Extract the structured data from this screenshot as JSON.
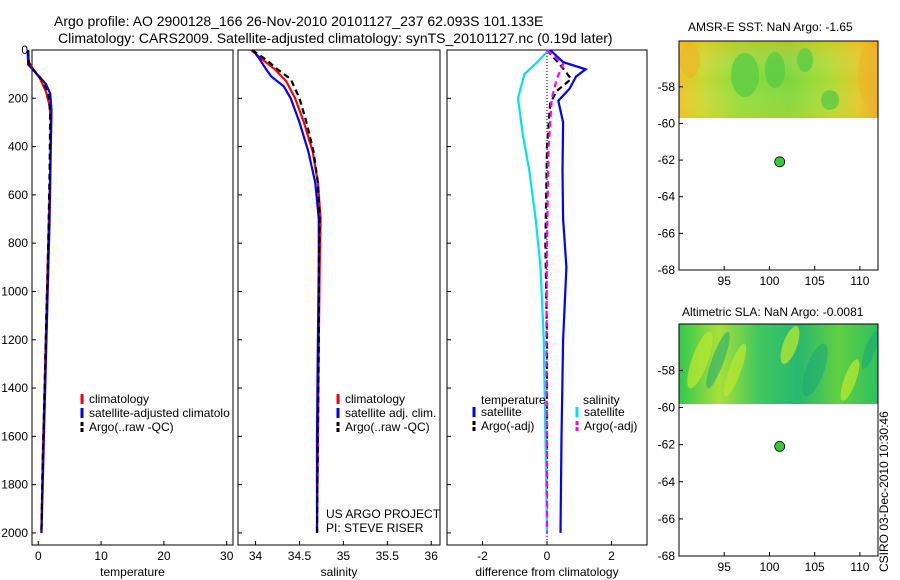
{
  "title_line1": "Argo profile: AO 2900128_166 26-Nov-2010 20101127_237 62.093S 101.133E",
  "title_line2": "Climatology: CARS2009. Satellite-adjusted climatology: synTS_20101127.nc (0.19d later)",
  "credit": "US ARGO PROJECT",
  "pi": "PI: STEVE RISER",
  "timestamp": "CSIRO 03-Dec-2010 10:30:46",
  "colors": {
    "climatology": "#ff0000",
    "satellite": "#0000ff",
    "argo": "#000000",
    "sal_sat": "#00e5e5",
    "sal_argo": "#ff00ff"
  },
  "chart_data": [
    {
      "type": "line",
      "xlabel": "temperature",
      "xlim": [
        -1,
        31
      ],
      "ylim": [
        2050,
        0
      ],
      "xticks": [
        0,
        10,
        20,
        30
      ],
      "yticks": [
        0,
        200,
        400,
        600,
        800,
        1000,
        1200,
        1400,
        1600,
        1800,
        2000
      ],
      "legend": [
        "climatology",
        "satellite-adjusted climatolo",
        "Argo(..raw -QC)"
      ],
      "series": [
        {
          "name": "climatology",
          "color": "red",
          "dash": "",
          "points": [
            [
              -1.6,
              0
            ],
            [
              -1.5,
              50
            ],
            [
              -0.8,
              80
            ],
            [
              0.3,
              120
            ],
            [
              1.2,
              170
            ],
            [
              1.8,
              230
            ],
            [
              2.0,
              300
            ],
            [
              1.9,
              500
            ],
            [
              1.6,
              800
            ],
            [
              1.3,
              1100
            ],
            [
              1.0,
              1400
            ],
            [
              0.7,
              1700
            ],
            [
              0.5,
              2000
            ]
          ]
        },
        {
          "name": "satellite-adjusted climatology",
          "color": "blue",
          "dash": "",
          "points": [
            [
              -1.7,
              0
            ],
            [
              -1.6,
              60
            ],
            [
              -0.2,
              100
            ],
            [
              1.2,
              140
            ],
            [
              1.9,
              180
            ],
            [
              2.1,
              250
            ],
            [
              2.0,
              400
            ],
            [
              1.8,
              700
            ],
            [
              1.5,
              1000
            ],
            [
              1.2,
              1300
            ],
            [
              0.9,
              1600
            ],
            [
              0.7,
              1800
            ],
            [
              0.5,
              2000
            ]
          ]
        },
        {
          "name": "Argo(..raw -QC)",
          "color": "black",
          "dash": "6,4",
          "points": [
            [
              -1.6,
              0
            ],
            [
              -1.5,
              60
            ],
            [
              0.5,
              120
            ],
            [
              1.6,
              180
            ],
            [
              1.9,
              260
            ],
            [
              1.8,
              500
            ],
            [
              1.6,
              800
            ],
            [
              1.3,
              1100
            ],
            [
              1.0,
              1400
            ],
            [
              0.7,
              1700
            ],
            [
              0.5,
              2000
            ]
          ]
        }
      ]
    },
    {
      "type": "line",
      "xlabel": "salinity",
      "xlim": [
        33.8,
        36.1
      ],
      "ylim": [
        2050,
        0
      ],
      "xticks": [
        34,
        34.5,
        35,
        35.5,
        36
      ],
      "yticks": [
        0,
        200,
        400,
        600,
        800,
        1000,
        1200,
        1400,
        1600,
        1800,
        2000
      ],
      "legend": [
        "climatology",
        "satellite adj. clim.",
        "Argo(..raw -QC)"
      ],
      "series": [
        {
          "name": "climatology",
          "color": "red",
          "dash": "",
          "points": [
            [
              33.95,
              0
            ],
            [
              34.08,
              40
            ],
            [
              34.22,
              80
            ],
            [
              34.35,
              130
            ],
            [
              34.45,
              200
            ],
            [
              34.55,
              300
            ],
            [
              34.65,
              420
            ],
            [
              34.71,
              550
            ],
            [
              34.74,
              700
            ],
            [
              34.73,
              900
            ],
            [
              34.72,
              1200
            ],
            [
              34.71,
              1600
            ],
            [
              34.7,
              2000
            ]
          ]
        },
        {
          "name": "satellite adj. clim.",
          "color": "blue",
          "dash": "",
          "points": [
            [
              33.97,
              0
            ],
            [
              34.05,
              40
            ],
            [
              34.12,
              80
            ],
            [
              34.18,
              110
            ],
            [
              34.32,
              150
            ],
            [
              34.4,
              200
            ],
            [
              34.5,
              300
            ],
            [
              34.6,
              420
            ],
            [
              34.68,
              550
            ],
            [
              34.72,
              700
            ],
            [
              34.72,
              900
            ],
            [
              34.71,
              1200
            ],
            [
              34.7,
              1600
            ],
            [
              34.7,
              2000
            ]
          ]
        },
        {
          "name": "Argo(..raw -QC)",
          "color": "black",
          "dash": "6,4",
          "points": [
            [
              33.96,
              0
            ],
            [
              34.12,
              40
            ],
            [
              34.25,
              80
            ],
            [
              34.4,
              120
            ],
            [
              34.5,
              200
            ],
            [
              34.58,
              300
            ],
            [
              34.66,
              420
            ],
            [
              34.71,
              550
            ],
            [
              34.73,
              700
            ],
            [
              34.72,
              900
            ],
            [
              34.72,
              1200
            ],
            [
              34.71,
              1600
            ],
            [
              34.7,
              2000
            ]
          ]
        }
      ]
    },
    {
      "type": "line",
      "xlabel": "difference from climatology",
      "xlim": [
        -3.1,
        3.1
      ],
      "ylim": [
        2050,
        0
      ],
      "xticks": [
        -2,
        0,
        2
      ],
      "yticks": [
        0,
        200,
        400,
        600,
        800,
        1000,
        1200,
        1400,
        1600,
        1800,
        2000
      ],
      "legend_titles": [
        "temperature",
        "salinity"
      ],
      "legend": [
        "satellite",
        "Argo(-adj)",
        "satellite",
        "Argo(-adj)"
      ],
      "series": [
        {
          "name": "temperature satellite",
          "color": "blue",
          "dash": "",
          "points": [
            [
              0.1,
              0
            ],
            [
              0.5,
              50
            ],
            [
              1.2,
              80
            ],
            [
              0.9,
              110
            ],
            [
              0.7,
              160
            ],
            [
              0.35,
              210
            ],
            [
              0.5,
              300
            ],
            [
              0.48,
              500
            ],
            [
              0.5,
              700
            ],
            [
              0.6,
              900
            ],
            [
              0.5,
              1200
            ],
            [
              0.45,
              1600
            ],
            [
              0.42,
              2000
            ]
          ]
        },
        {
          "name": "temperature Argo(-adj)",
          "color": "black",
          "dash": "6,4",
          "points": [
            [
              0.0,
              0
            ],
            [
              0.4,
              60
            ],
            [
              0.75,
              120
            ],
            [
              0.3,
              170
            ],
            [
              0.1,
              220
            ],
            [
              0.0,
              400
            ],
            [
              -0.05,
              800
            ],
            [
              0.0,
              1200
            ],
            [
              0.0,
              1600
            ],
            [
              0.0,
              2000
            ]
          ]
        },
        {
          "name": "salinity satellite",
          "color": "cyan",
          "dash": "",
          "points": [
            [
              0.05,
              0
            ],
            [
              -0.3,
              50
            ],
            [
              -0.7,
              100
            ],
            [
              -0.9,
              200
            ],
            [
              -0.75,
              350
            ],
            [
              -0.55,
              500
            ],
            [
              -0.35,
              700
            ],
            [
              -0.2,
              900
            ],
            [
              -0.1,
              1200
            ],
            [
              0.0,
              2000
            ]
          ]
        },
        {
          "name": "salinity Argo(-adj)",
          "color": "magenta",
          "dash": "6,4",
          "points": [
            [
              0.0,
              0
            ],
            [
              0.5,
              60
            ],
            [
              0.3,
              120
            ],
            [
              0.15,
              200
            ],
            [
              0.05,
              400
            ],
            [
              0.0,
              800
            ],
            [
              -0.02,
              1200
            ],
            [
              0.0,
              1600
            ],
            [
              0.0,
              2000
            ]
          ]
        }
      ]
    },
    {
      "type": "heatmap",
      "title": "AMSR-E SST: NaN Argo: -1.65",
      "xlim": [
        90,
        112
      ],
      "ylim": [
        -68,
        -55.5
      ],
      "xticks": [
        95,
        100,
        105,
        110
      ],
      "yticks": [
        -58,
        -60,
        -62,
        -64,
        -66,
        -68
      ],
      "data_extent_lat": [
        -60,
        -55.5
      ],
      "profile_location": [
        101.133,
        -62.093
      ]
    },
    {
      "type": "heatmap",
      "title": "Altimetric SLA: NaN Argo: -0.0081",
      "xlim": [
        90,
        112
      ],
      "ylim": [
        -68,
        -55.5
      ],
      "xticks": [
        95,
        100,
        105,
        110
      ],
      "yticks": [
        -58,
        -60,
        -62,
        -64,
        -66,
        -68
      ],
      "data_extent_lat": [
        -60,
        -55.5
      ],
      "profile_location": [
        101.133,
        -62.093
      ]
    }
  ]
}
